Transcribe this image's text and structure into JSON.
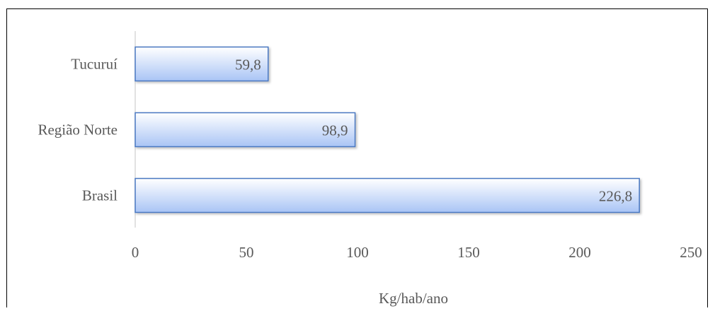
{
  "chart_data": {
    "type": "bar",
    "orientation": "horizontal",
    "categories": [
      "Tucuruí",
      "Região Norte",
      "Brasil"
    ],
    "values": [
      59.8,
      98.9,
      226.8
    ],
    "data_labels": [
      "59,8",
      "98,9",
      "226,8"
    ],
    "title": "",
    "xlabel": "Kg/hab/ano",
    "ylabel": "",
    "xlim": [
      0,
      250
    ],
    "xticks": [
      0,
      50,
      100,
      150,
      200,
      250
    ],
    "xtick_labels": [
      "0",
      "50",
      "100",
      "150",
      "200",
      "250"
    ],
    "grid": false,
    "legend": "none",
    "colors": {
      "bar_fill_top": "#ffffff",
      "bar_fill_bottom": "#a9c4f5",
      "bar_stroke": "#4a78c2",
      "axis_line": "#d9d9d9",
      "frame": "#000000",
      "text": "#595959"
    }
  }
}
